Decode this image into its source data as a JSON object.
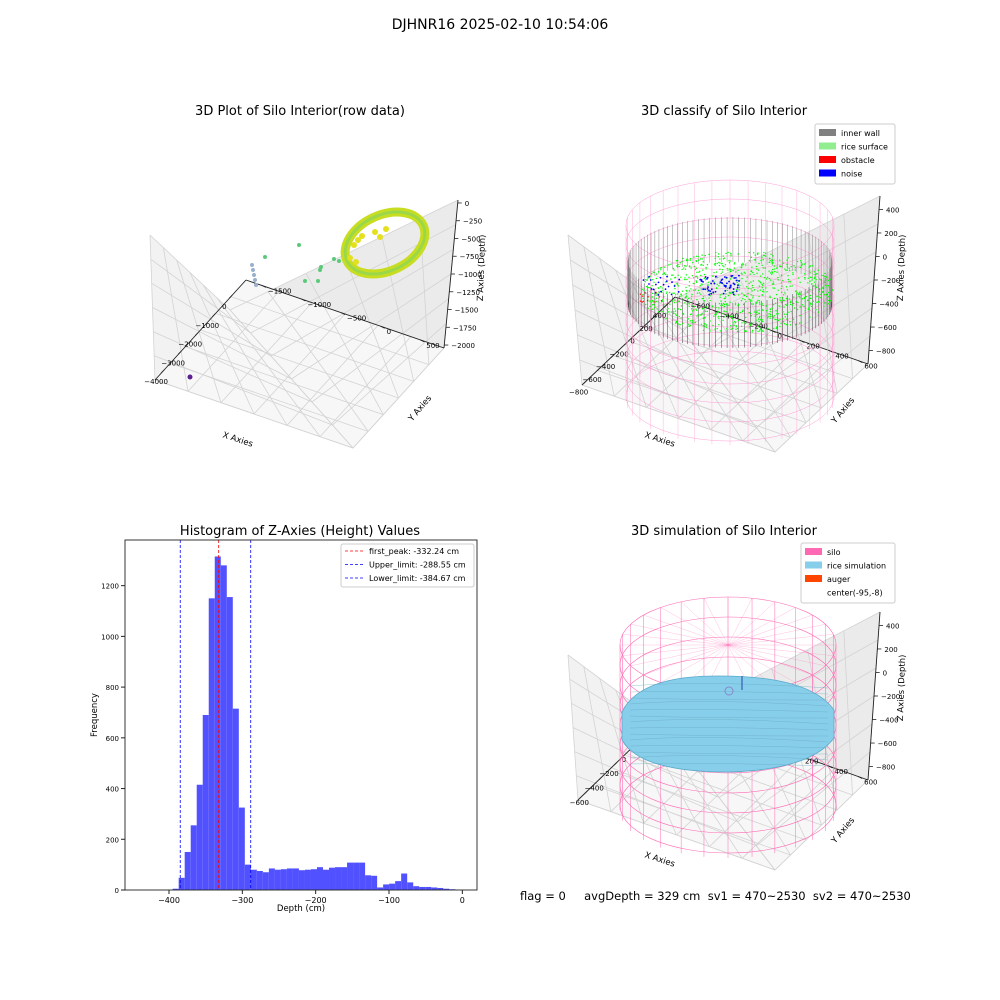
{
  "figure": {
    "title": "DJHNR16 2025-02-10 10:54:06",
    "footer": "flag = 0     avgDepth = 329 cm  sv1 = 470~2530  sv2 = 470~2530"
  },
  "colors": {
    "inner_wall": "#808080",
    "rice_surface": "#90ee90",
    "obstacle": "#ff0000",
    "noise": "#0000ff",
    "silo": "#ff69b4",
    "rice_simulation": "#87ceeb",
    "auger": "#ff4500",
    "hist_bar": "#4b4bff"
  },
  "chart_data": [
    {
      "type": "scatter",
      "title": "3D Plot of Silo Interior(row data)",
      "xlabel": "X Axies",
      "ylabel": "Y Axies",
      "zlabel": "Z Axies (Depth)",
      "x_ticks": [
        "−4000",
        "−3000",
        "−2000",
        "−1000",
        "0"
      ],
      "y_ticks": [
        "500",
        "0",
        "−500",
        "−1000",
        "−1500"
      ],
      "z_ticks": [
        "0",
        "−250",
        "−500",
        "−750",
        "−1000",
        "−1250",
        "−1500",
        "−1750",
        "−2000"
      ]
    },
    {
      "type": "scatter",
      "title": "3D classify of Silo Interior",
      "xlabel": "X Axies",
      "ylabel": "Y Axies",
      "zlabel": "Z Axies (Depth)",
      "x_ticks": [
        "−800",
        "−600",
        "−400",
        "−200",
        "0",
        "200",
        "400"
      ],
      "y_ticks": [
        "600",
        "400",
        "200",
        "0",
        "−200",
        "−400",
        "−600"
      ],
      "z_ticks": [
        "400",
        "200",
        "0",
        "−200",
        "−400",
        "−600",
        "−800"
      ],
      "legend": [
        "inner wall",
        "rice surface",
        "obstacle",
        "noise"
      ],
      "legend_position": "top-right"
    },
    {
      "type": "bar",
      "title": "Histogram of Z-Axies (Height) Values",
      "xlabel": "Depth (cm)",
      "ylabel": "Frequency",
      "xlim": [
        -460,
        20
      ],
      "ylim": [
        0,
        1380
      ],
      "x_ticks": [
        -400,
        -300,
        -200,
        -100,
        0
      ],
      "y_ticks": [
        0,
        200,
        400,
        600,
        800,
        1000,
        1200
      ],
      "bin_width": 8.2,
      "bin_starts": [
        -395,
        -386.8,
        -378.6,
        -370.4,
        -362.2,
        -354,
        -345.8,
        -337.6,
        -329.4,
        -321.2,
        -313,
        -304.8,
        -296.6,
        -288.4,
        -280.2,
        -272,
        -263.8,
        -255.6,
        -247.4,
        -239.2,
        -231,
        -222.8,
        -214.6,
        -206.4,
        -198.2,
        -190,
        -181.8,
        -173.6,
        -165.4,
        -157.2,
        -149,
        -140.8,
        -132.6,
        -124.4,
        -116.2,
        -108,
        -99.8,
        -91.6,
        -83.4,
        -75.2,
        -67,
        -58.8,
        -50.6,
        -42.4,
        -34.2,
        -26,
        -17.8,
        -9.6
      ],
      "values": [
        5,
        48,
        150,
        255,
        415,
        690,
        1150,
        1315,
        1280,
        1155,
        715,
        325,
        100,
        80,
        75,
        70,
        85,
        80,
        82,
        85,
        85,
        78,
        80,
        82,
        90,
        80,
        88,
        90,
        90,
        108,
        108,
        108,
        58,
        56,
        10,
        22,
        25,
        35,
        65,
        30,
        15,
        12,
        12,
        10,
        8,
        5,
        3,
        0
      ],
      "lines": [
        {
          "label": "first_peak: -332.24 cm",
          "x": -332.24,
          "color": "#ff0000"
        },
        {
          "label": "Upper_limit: -288.55 cm",
          "x": -288.55,
          "color": "#0000ff"
        },
        {
          "label": "Lower_limit: -384.67 cm",
          "x": -384.67,
          "color": "#0000ff"
        }
      ],
      "legend_position": "top-right"
    },
    {
      "type": "scatter",
      "title": "3D simulation of Silo Interior",
      "xlabel": "X Axies",
      "ylabel": "Y Axies",
      "zlabel": "Z Axies (Depth)",
      "x_ticks": [
        "−600",
        "−400",
        "−200",
        "0",
        "200",
        "400"
      ],
      "y_ticks": [
        "600",
        "400",
        "200",
        "0",
        "−200",
        "−400",
        "−600"
      ],
      "z_ticks": [
        "400",
        "200",
        "0",
        "−200",
        "−400",
        "−600",
        "−800"
      ],
      "legend": [
        "silo",
        "rice simulation",
        "auger",
        "center(-95,-8)"
      ],
      "legend_position": "top-right"
    }
  ]
}
